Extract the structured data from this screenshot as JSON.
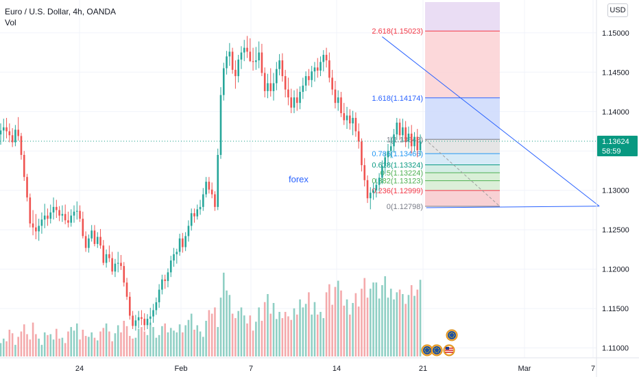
{
  "header": {
    "title": "Euro / U.S. Dollar, 4h, OANDA",
    "volume_label": "Vol",
    "currency_button": "USD"
  },
  "price_badge": {
    "price": "1.13624",
    "countdown": "58:59"
  },
  "colors": {
    "up": "#26a69a",
    "down": "#ef5350",
    "volume_up": "#8fcfc4",
    "volume_down": "#f4a9ab",
    "trendline": "#2962ff",
    "current_price_line": "#089981"
  },
  "annotations": {
    "text_label": "forex"
  },
  "chart_data": {
    "type": "candlestick",
    "symbol": "EURUSD",
    "timeframe": "4h",
    "x_ticks": [
      "24",
      "Feb",
      "7",
      "14",
      "21",
      "Mar",
      "7"
    ],
    "y_ticks": [
      "1.15000",
      "1.14500",
      "1.14000",
      "1.13500",
      "1.13000",
      "1.12500",
      "1.12000",
      "1.11500",
      "1.11000"
    ],
    "ylim": [
      1.1091,
      1.1539
    ],
    "last_price": 1.13624,
    "fibonacci_levels": [
      {
        "label": "0(1.12798)",
        "value": 1.12798,
        "color": "#787b86"
      },
      {
        "label": "0.236(1.12999)",
        "value": 1.12999,
        "color": "#f23645"
      },
      {
        "label": "0.382(1.13123)",
        "value": 1.13123,
        "color": "#4caf50"
      },
      {
        "label": "0.5(1.13224)",
        "value": 1.13224,
        "color": "#4caf50"
      },
      {
        "label": "0.618(1.13324)",
        "value": 1.13324,
        "color": "#089981"
      },
      {
        "label": "0.786(1.13466)",
        "value": 1.13466,
        "color": "#2196f3"
      },
      {
        "label": "1(1.13648)",
        "value": 1.13648,
        "color": "#787b86"
      },
      {
        "label": "1.618(1.14174)",
        "value": 1.14174,
        "color": "#2962ff"
      },
      {
        "label": "2.618(1.15023)",
        "value": 1.15023,
        "color": "#f23645"
      }
    ],
    "trendlines": [
      {
        "name": "descending-resistance",
        "from": {
          "t": 130,
          "p": 1.1495
        },
        "to": {
          "t": 204,
          "p": 1.128
        }
      },
      {
        "name": "horizontal-support",
        "from": {
          "t": 145,
          "p": 1.1278
        },
        "to": {
          "t": 204,
          "p": 1.128
        }
      }
    ],
    "candles": [
      [
        1.1371,
        1.1385,
        1.1358,
        1.1376
      ],
      [
        1.1376,
        1.1391,
        1.1362,
        1.138
      ],
      [
        1.138,
        1.1392,
        1.1366,
        1.1375
      ],
      [
        1.1375,
        1.1385,
        1.1361,
        1.137
      ],
      [
        1.137,
        1.1379,
        1.1355,
        1.1361
      ],
      [
        1.1361,
        1.1383,
        1.1356,
        1.1377
      ],
      [
        1.1377,
        1.1393,
        1.1363,
        1.1369
      ],
      [
        1.1369,
        1.1373,
        1.1339,
        1.1345
      ],
      [
        1.1345,
        1.135,
        1.1312,
        1.1317
      ],
      [
        1.1317,
        1.1321,
        1.1286,
        1.1291
      ],
      [
        1.1291,
        1.1296,
        1.1253,
        1.1258
      ],
      [
        1.1258,
        1.1275,
        1.1243,
        1.1253
      ],
      [
        1.1253,
        1.127,
        1.1238,
        1.1248
      ],
      [
        1.1248,
        1.1264,
        1.1236,
        1.1255
      ],
      [
        1.1255,
        1.1272,
        1.1245,
        1.1263
      ],
      [
        1.1263,
        1.1283,
        1.1252,
        1.1268
      ],
      [
        1.1268,
        1.1277,
        1.1255,
        1.1264
      ],
      [
        1.1264,
        1.1282,
        1.1258,
        1.1272
      ],
      [
        1.1272,
        1.1291,
        1.1263,
        1.1279
      ],
      [
        1.1279,
        1.1288,
        1.1265,
        1.1275
      ],
      [
        1.1275,
        1.128,
        1.1261,
        1.1268
      ],
      [
        1.1268,
        1.1281,
        1.126,
        1.127
      ],
      [
        1.127,
        1.1282,
        1.1257,
        1.1262
      ],
      [
        1.1262,
        1.1273,
        1.1253,
        1.1259
      ],
      [
        1.1259,
        1.1276,
        1.1254,
        1.1268
      ],
      [
        1.1268,
        1.1281,
        1.1259,
        1.1273
      ],
      [
        1.1273,
        1.1286,
        1.1263,
        1.1274
      ],
      [
        1.1274,
        1.1281,
        1.126,
        1.1264
      ],
      [
        1.1264,
        1.1273,
        1.1239,
        1.1242
      ],
      [
        1.1242,
        1.1248,
        1.1222,
        1.1227
      ],
      [
        1.1227,
        1.1244,
        1.1221,
        1.1239
      ],
      [
        1.1239,
        1.1256,
        1.1235,
        1.1249
      ],
      [
        1.1249,
        1.1256,
        1.1229,
        1.1232
      ],
      [
        1.1232,
        1.1247,
        1.1227,
        1.1241
      ],
      [
        1.1241,
        1.1251,
        1.1226,
        1.123
      ],
      [
        1.123,
        1.1237,
        1.1205,
        1.1208
      ],
      [
        1.1208,
        1.1225,
        1.1202,
        1.1219
      ],
      [
        1.1219,
        1.123,
        1.1209,
        1.1214
      ],
      [
        1.1214,
        1.1222,
        1.1193,
        1.1197
      ],
      [
        1.1197,
        1.1213,
        1.119,
        1.1207
      ],
      [
        1.1207,
        1.1222,
        1.1196,
        1.1208
      ],
      [
        1.1208,
        1.1218,
        1.1199,
        1.1204
      ],
      [
        1.1204,
        1.1209,
        1.1178,
        1.1183
      ],
      [
        1.1183,
        1.1189,
        1.1161,
        1.1165
      ],
      [
        1.1165,
        1.1171,
        1.1136,
        1.1141
      ],
      [
        1.1141,
        1.1147,
        1.1124,
        1.1128
      ],
      [
        1.1128,
        1.1142,
        1.1122,
        1.1135
      ],
      [
        1.1135,
        1.1147,
        1.1125,
        1.1139
      ],
      [
        1.1139,
        1.1148,
        1.1129,
        1.1137
      ],
      [
        1.1137,
        1.1144,
        1.1122,
        1.1129
      ],
      [
        1.1129,
        1.1143,
        1.1124,
        1.1137
      ],
      [
        1.1137,
        1.1151,
        1.1129,
        1.114
      ],
      [
        1.114,
        1.1156,
        1.1132,
        1.1148
      ],
      [
        1.1148,
        1.1164,
        1.1142,
        1.1158
      ],
      [
        1.1158,
        1.1181,
        1.1151,
        1.1174
      ],
      [
        1.1174,
        1.1193,
        1.1168,
        1.1187
      ],
      [
        1.1187,
        1.1193,
        1.1175,
        1.1185
      ],
      [
        1.1185,
        1.1201,
        1.1177,
        1.1196
      ],
      [
        1.1196,
        1.1217,
        1.119,
        1.1211
      ],
      [
        1.1211,
        1.1227,
        1.1203,
        1.1219
      ],
      [
        1.1219,
        1.1226,
        1.1207,
        1.1222
      ],
      [
        1.1222,
        1.1245,
        1.1217,
        1.1239
      ],
      [
        1.1239,
        1.1246,
        1.1221,
        1.1228
      ],
      [
        1.1228,
        1.1247,
        1.1223,
        1.1242
      ],
      [
        1.1242,
        1.1262,
        1.1235,
        1.1255
      ],
      [
        1.1255,
        1.1277,
        1.1249,
        1.1271
      ],
      [
        1.1271,
        1.1277,
        1.1259,
        1.1267
      ],
      [
        1.1267,
        1.1282,
        1.1263,
        1.1276
      ],
      [
        1.1276,
        1.1288,
        1.1269,
        1.1279
      ],
      [
        1.1279,
        1.1303,
        1.1274,
        1.1295
      ],
      [
        1.1295,
        1.1317,
        1.1291,
        1.1311
      ],
      [
        1.1311,
        1.1317,
        1.1296,
        1.1301
      ],
      [
        1.1301,
        1.131,
        1.129,
        1.1295
      ],
      [
        1.1295,
        1.1299,
        1.1274,
        1.1279
      ],
      [
        1.1279,
        1.1353,
        1.1275,
        1.1345
      ],
      [
        1.1345,
        1.1431,
        1.134,
        1.1421
      ],
      [
        1.1421,
        1.1462,
        1.1414,
        1.1455
      ],
      [
        1.1455,
        1.1477,
        1.1447,
        1.147
      ],
      [
        1.147,
        1.1487,
        1.1458,
        1.1476
      ],
      [
        1.1476,
        1.1481,
        1.1448,
        1.1453
      ],
      [
        1.1453,
        1.1465,
        1.1429,
        1.1445
      ],
      [
        1.1445,
        1.1472,
        1.1437,
        1.1466
      ],
      [
        1.1466,
        1.1483,
        1.1454,
        1.1475
      ],
      [
        1.1475,
        1.1491,
        1.1464,
        1.1481
      ],
      [
        1.1481,
        1.1496,
        1.1468,
        1.1476
      ],
      [
        1.1476,
        1.1493,
        1.1463,
        1.1464
      ],
      [
        1.1464,
        1.1481,
        1.1452,
        1.1463
      ],
      [
        1.1463,
        1.1482,
        1.1453,
        1.1465
      ],
      [
        1.1465,
        1.1489,
        1.1455,
        1.1475
      ],
      [
        1.1475,
        1.1486,
        1.1445,
        1.1449
      ],
      [
        1.1449,
        1.1456,
        1.1418,
        1.1426
      ],
      [
        1.1426,
        1.1448,
        1.1417,
        1.1436
      ],
      [
        1.1436,
        1.1455,
        1.1419,
        1.1426
      ],
      [
        1.1426,
        1.1449,
        1.1414,
        1.1436
      ],
      [
        1.1436,
        1.1463,
        1.1427,
        1.1454
      ],
      [
        1.1454,
        1.1473,
        1.1446,
        1.1465
      ],
      [
        1.1465,
        1.1474,
        1.1438,
        1.1445
      ],
      [
        1.1445,
        1.1453,
        1.1418,
        1.1428
      ],
      [
        1.1428,
        1.1443,
        1.1408,
        1.1418
      ],
      [
        1.1418,
        1.1429,
        1.1398,
        1.1405
      ],
      [
        1.1405,
        1.1427,
        1.1398,
        1.1418
      ],
      [
        1.1418,
        1.1429,
        1.1401,
        1.1411
      ],
      [
        1.1411,
        1.1432,
        1.1403,
        1.1425
      ],
      [
        1.1425,
        1.1443,
        1.1416,
        1.1433
      ],
      [
        1.1433,
        1.1451,
        1.1426,
        1.1445
      ],
      [
        1.1445,
        1.1454,
        1.1433,
        1.144
      ],
      [
        1.144,
        1.1458,
        1.1431,
        1.1451
      ],
      [
        1.1451,
        1.1463,
        1.1438,
        1.1456
      ],
      [
        1.1456,
        1.1468,
        1.1443,
        1.1452
      ],
      [
        1.1452,
        1.147,
        1.1445,
        1.1463
      ],
      [
        1.1463,
        1.1478,
        1.1451,
        1.1472
      ],
      [
        1.1472,
        1.1481,
        1.1456,
        1.1465
      ],
      [
        1.1465,
        1.1475,
        1.1437,
        1.1443
      ],
      [
        1.1443,
        1.1453,
        1.1421,
        1.1428
      ],
      [
        1.1428,
        1.1439,
        1.1404,
        1.1411
      ],
      [
        1.1411,
        1.1427,
        1.1401,
        1.1418
      ],
      [
        1.1418,
        1.1425,
        1.1393,
        1.1398
      ],
      [
        1.1398,
        1.1411,
        1.1383,
        1.1389
      ],
      [
        1.1389,
        1.1406,
        1.1378,
        1.1395
      ],
      [
        1.1395,
        1.1403,
        1.1377,
        1.1385
      ],
      [
        1.1385,
        1.1401,
        1.137,
        1.1392
      ],
      [
        1.1392,
        1.1399,
        1.1368,
        1.1375
      ],
      [
        1.1375,
        1.1385,
        1.1353,
        1.1362
      ],
      [
        1.1362,
        1.1366,
        1.1324,
        1.1332
      ],
      [
        1.1332,
        1.1341,
        1.1305,
        1.1313
      ],
      [
        1.1313,
        1.1319,
        1.1284,
        1.129
      ],
      [
        1.129,
        1.1304,
        1.1276,
        1.1297
      ],
      [
        1.1297,
        1.131,
        1.1288,
        1.13
      ],
      [
        1.13,
        1.1315,
        1.1291,
        1.1307
      ],
      [
        1.1307,
        1.1322,
        1.1299,
        1.1316
      ],
      [
        1.1316,
        1.1338,
        1.1308,
        1.1331
      ],
      [
        1.1331,
        1.1348,
        1.1321,
        1.1342
      ],
      [
        1.1342,
        1.1359,
        1.1331,
        1.135
      ],
      [
        1.135,
        1.1368,
        1.1341,
        1.1356
      ],
      [
        1.1356,
        1.1378,
        1.1348,
        1.1371
      ],
      [
        1.1371,
        1.1392,
        1.1364,
        1.1386
      ],
      [
        1.1386,
        1.1391,
        1.1364,
        1.137
      ],
      [
        1.137,
        1.1391,
        1.1362,
        1.138
      ],
      [
        1.138,
        1.1388,
        1.1355,
        1.1362
      ],
      [
        1.1362,
        1.1381,
        1.1353,
        1.1372
      ],
      [
        1.1372,
        1.1383,
        1.1347,
        1.1356
      ],
      [
        1.1356,
        1.1374,
        1.1349,
        1.1368
      ],
      [
        1.1368,
        1.1378,
        1.1342,
        1.1351
      ],
      [
        1.1351,
        1.1371,
        1.1344,
        1.1362
      ]
    ],
    "volume": [
      0.15,
      0.2,
      0.17,
      0.3,
      0.26,
      0.13,
      0.22,
      0.28,
      0.36,
      0.25,
      0.19,
      0.38,
      0.25,
      0.2,
      0.13,
      0.27,
      0.24,
      0.25,
      0.19,
      0.31,
      0.2,
      0.21,
      0.15,
      0.28,
      0.33,
      0.29,
      0.37,
      0.19,
      0.3,
      0.23,
      0.22,
      0.27,
      0.21,
      0.18,
      0.28,
      0.32,
      0.37,
      0.28,
      0.17,
      0.26,
      0.35,
      0.27,
      0.4,
      0.34,
      0.23,
      0.2,
      0.21,
      0.31,
      0.33,
      0.28,
      0.24,
      0.38,
      0.33,
      0.21,
      0.24,
      0.34,
      0.37,
      0.27,
      0.32,
      0.29,
      0.27,
      0.36,
      0.27,
      0.35,
      0.41,
      0.48,
      0.3,
      0.35,
      0.28,
      0.22,
      0.4,
      0.52,
      0.48,
      0.55,
      0.33,
      0.66,
      0.94,
      0.74,
      0.69,
      0.48,
      0.43,
      0.51,
      0.55,
      0.46,
      0.37,
      0.46,
      0.29,
      0.39,
      0.55,
      0.4,
      0.61,
      0.7,
      0.48,
      0.6,
      0.42,
      0.5,
      0.43,
      0.5,
      0.45,
      0.41,
      0.54,
      0.47,
      0.64,
      0.55,
      0.59,
      0.72,
      0.47,
      0.61,
      0.47,
      0.5,
      0.43,
      0.72,
      0.81,
      0.58,
      0.78,
      0.85,
      0.74,
      0.57,
      0.64,
      0.47,
      0.6,
      0.71,
      0.56,
      0.76,
      0.88,
      0.66,
      0.76,
      0.83,
      0.83,
      0.65,
      0.8,
      0.9,
      0.66,
      0.76,
      0.64,
      0.72,
      0.75,
      0.7,
      0.59,
      0.69,
      0.8,
      0.68,
      0.75,
      0.86
    ]
  },
  "events": {
    "markers": [
      {
        "name": "eu-event-marker-1",
        "flag": "EU"
      },
      {
        "name": "eu-event-marker-2",
        "flag": "EU"
      },
      {
        "name": "us-event-marker",
        "flag": "US"
      },
      {
        "name": "eu-event-marker-3",
        "flag": "EU"
      }
    ]
  }
}
